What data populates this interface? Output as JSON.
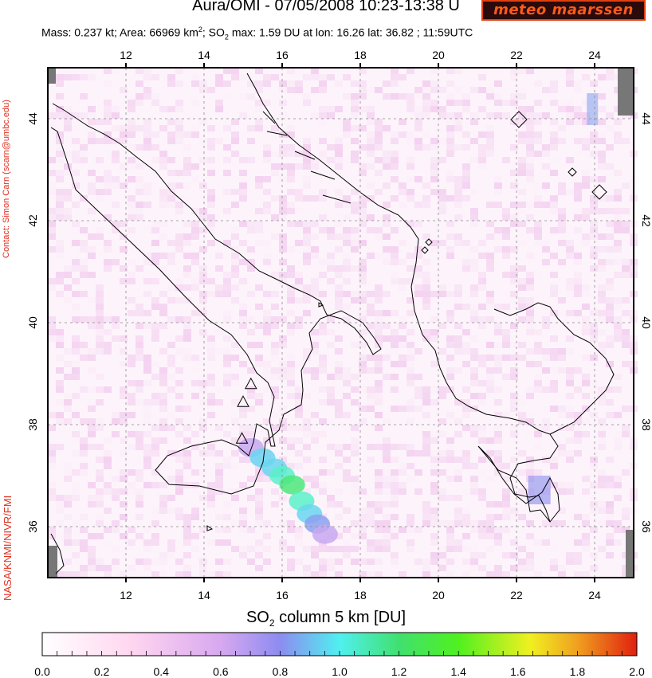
{
  "header": {
    "title": "Aura/OMI - 07/05/2008 10:23-13:38 U",
    "subtitle_mass": "Mass: 0.237 kt; Area: 66969 km",
    "subtitle_sup": "2",
    "subtitle_so2": "; SO",
    "subtitle_sub": "2",
    "subtitle_rest": " max: 1.59 DU at lon: 16.26 lat: 36.82 ; 11:59UTC"
  },
  "logo": {
    "text": "meteo maarssen"
  },
  "side_labels": {
    "contact": "Contact: Simon Carn (scarn@umbc.edu)",
    "credit": "NASA/KNMI/NIVR/FMI"
  },
  "map": {
    "lon_range": [
      10,
      25
    ],
    "lat_range": [
      35,
      45
    ],
    "lon_ticks": [
      "12",
      "14",
      "16",
      "18",
      "20",
      "22",
      "24"
    ],
    "lat_ticks": [
      "44",
      "42",
      "40",
      "38",
      "36"
    ],
    "volcano_markers": [
      {
        "lon": 15.2,
        "lat": 38.8
      },
      {
        "lon": 15.0,
        "lat": 38.45
      },
      {
        "lon": 14.97,
        "lat": 37.73
      }
    ],
    "plume_center": {
      "lon": 16.26,
      "lat": 36.82,
      "max_du": 1.59
    }
  },
  "colorbar": {
    "title_pre": "SO",
    "title_sub": "2",
    "title_post": " column 5 km [DU]",
    "labels": [
      "0.0",
      "0.2",
      "0.4",
      "0.6",
      "0.8",
      "1.0",
      "1.2",
      "1.4",
      "1.6",
      "1.8",
      "2.0"
    ],
    "min": 0.0,
    "max": 2.0
  }
}
